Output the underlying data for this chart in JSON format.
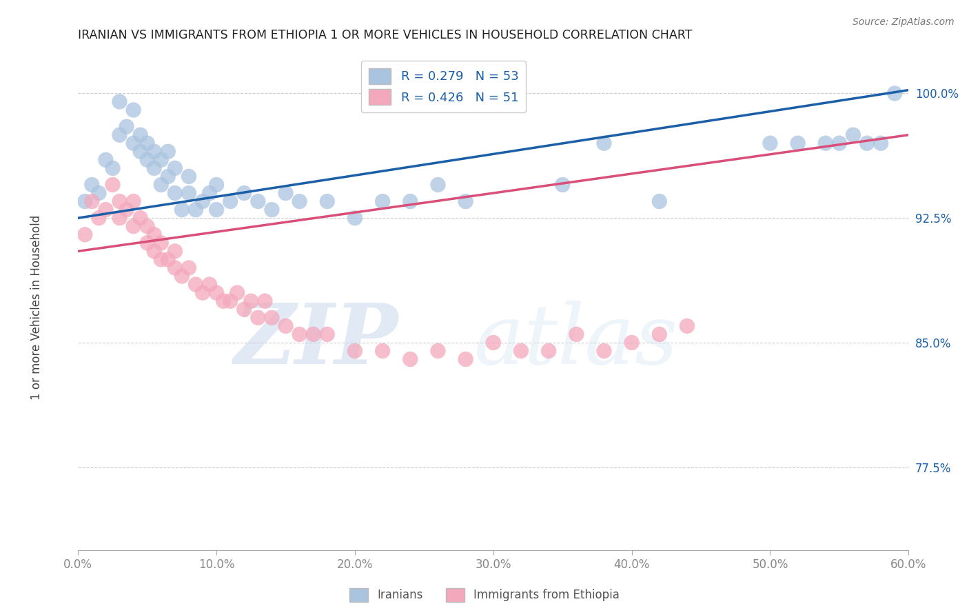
{
  "title": "IRANIAN VS IMMIGRANTS FROM ETHIOPIA 1 OR MORE VEHICLES IN HOUSEHOLD CORRELATION CHART",
  "source": "Source: ZipAtlas.com",
  "ylabel": "1 or more Vehicles in Household",
  "legend_label1": "Iranians",
  "legend_label2": "Immigrants from Ethiopia",
  "R1": 0.279,
  "N1": 53,
  "R2": 0.426,
  "N2": 51,
  "color1": "#aac4e0",
  "color2": "#f4a8bc",
  "line_color1": "#1a5fa8",
  "line_color2": "#d94f7a",
  "xlim": [
    0.0,
    0.6
  ],
  "ylim": [
    0.725,
    1.025
  ],
  "xticks": [
    0.0,
    0.1,
    0.2,
    0.3,
    0.4,
    0.5,
    0.6
  ],
  "xtick_labels": [
    "0.0%",
    "10.0%",
    "20.0%",
    "30.0%",
    "40.0%",
    "50.0%",
    "60.0%"
  ],
  "ytick_labels": [
    "77.5%",
    "85.0%",
    "92.5%",
    "100.0%"
  ],
  "ytick_values": [
    0.775,
    0.85,
    0.925,
    1.0
  ],
  "watermark_zip": "ZIP",
  "watermark_atlas": "atlas",
  "scatter1_x": [
    0.005,
    0.01,
    0.015,
    0.02,
    0.025,
    0.03,
    0.03,
    0.035,
    0.04,
    0.04,
    0.045,
    0.045,
    0.05,
    0.05,
    0.055,
    0.055,
    0.06,
    0.06,
    0.065,
    0.065,
    0.07,
    0.07,
    0.075,
    0.08,
    0.08,
    0.085,
    0.09,
    0.095,
    0.1,
    0.1,
    0.11,
    0.12,
    0.13,
    0.14,
    0.15,
    0.16,
    0.18,
    0.2,
    0.22,
    0.24,
    0.26,
    0.28,
    0.35,
    0.38,
    0.42,
    0.5,
    0.52,
    0.54,
    0.55,
    0.56,
    0.57,
    0.58,
    0.59
  ],
  "scatter1_y": [
    0.935,
    0.945,
    0.94,
    0.96,
    0.955,
    0.975,
    0.995,
    0.98,
    0.97,
    0.99,
    0.965,
    0.975,
    0.96,
    0.97,
    0.955,
    0.965,
    0.945,
    0.96,
    0.95,
    0.965,
    0.94,
    0.955,
    0.93,
    0.94,
    0.95,
    0.93,
    0.935,
    0.94,
    0.93,
    0.945,
    0.935,
    0.94,
    0.935,
    0.93,
    0.94,
    0.935,
    0.935,
    0.925,
    0.935,
    0.935,
    0.945,
    0.935,
    0.945,
    0.97,
    0.935,
    0.97,
    0.97,
    0.97,
    0.97,
    0.975,
    0.97,
    0.97,
    1.0
  ],
  "scatter2_x": [
    0.005,
    0.01,
    0.015,
    0.02,
    0.025,
    0.03,
    0.03,
    0.035,
    0.04,
    0.04,
    0.045,
    0.05,
    0.05,
    0.055,
    0.055,
    0.06,
    0.06,
    0.065,
    0.07,
    0.07,
    0.075,
    0.08,
    0.085,
    0.09,
    0.095,
    0.1,
    0.105,
    0.11,
    0.115,
    0.12,
    0.125,
    0.13,
    0.135,
    0.14,
    0.15,
    0.16,
    0.17,
    0.18,
    0.2,
    0.22,
    0.24,
    0.26,
    0.28,
    0.3,
    0.32,
    0.34,
    0.36,
    0.38,
    0.4,
    0.42,
    0.44
  ],
  "scatter2_y": [
    0.915,
    0.935,
    0.925,
    0.93,
    0.945,
    0.925,
    0.935,
    0.93,
    0.92,
    0.935,
    0.925,
    0.91,
    0.92,
    0.905,
    0.915,
    0.9,
    0.91,
    0.9,
    0.895,
    0.905,
    0.89,
    0.895,
    0.885,
    0.88,
    0.885,
    0.88,
    0.875,
    0.875,
    0.88,
    0.87,
    0.875,
    0.865,
    0.875,
    0.865,
    0.86,
    0.855,
    0.855,
    0.855,
    0.845,
    0.845,
    0.84,
    0.845,
    0.84,
    0.85,
    0.845,
    0.845,
    0.855,
    0.845,
    0.85,
    0.855,
    0.86
  ],
  "line1_x0": 0.0,
  "line1_y0": 0.925,
  "line1_x1": 0.6,
  "line1_y1": 1.002,
  "line2_x0": 0.0,
  "line2_y0": 0.905,
  "line2_x1": 0.6,
  "line2_y1": 0.975
}
